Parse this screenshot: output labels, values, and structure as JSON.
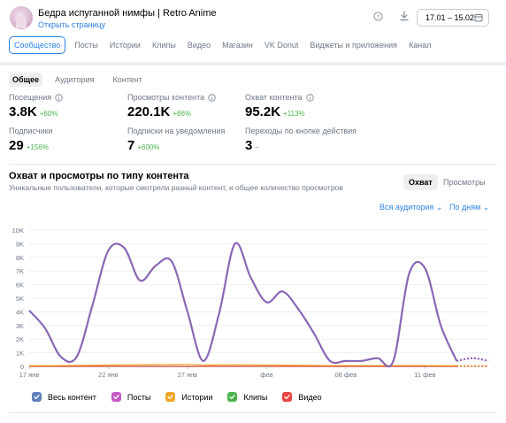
{
  "header": {
    "group_name": "Бедра испуганной нимфы | Retro Anime",
    "open_page": "Открыть страницу",
    "date_range": "17.01 – 15.02"
  },
  "tabs": [
    "Сообщество",
    "Посты",
    "Истории",
    "Клипы",
    "Видео",
    "Магазин",
    "VK Donut",
    "Виджеты и приложения",
    "Канал"
  ],
  "subtabs": [
    "Общее",
    "Аудитория",
    "Контент"
  ],
  "metrics": {
    "visits": {
      "label": "Посещения",
      "value": "3.8K",
      "delta": "+60%"
    },
    "views": {
      "label": "Просмотры контента",
      "value": "220.1K",
      "delta": "+86%"
    },
    "reach": {
      "label": "Охват контента",
      "value": "95.2K",
      "delta": "+113%"
    },
    "subs": {
      "label": "Подписчики",
      "value": "29",
      "delta": "+156%"
    },
    "notif": {
      "label": "Подписки на уведомления",
      "value": "7",
      "delta": "+600%"
    },
    "action": {
      "label": "Переходы по кнопке действия",
      "value": "3",
      "delta": "–"
    }
  },
  "section": {
    "title": "Охват и просмотры по типу контента",
    "subtitle": "Уникальные пользователи, которые смотрели разный контент, и общее количество просмотров",
    "seg_reach": "Охват",
    "seg_views": "Просмотры",
    "audience_dd": "Вся аудитория",
    "period_dd": "По дням"
  },
  "colors": {
    "accent": "#2d81e0",
    "all_content": "#5f7fb8",
    "posts": "#c35bc3",
    "stories": "#f0a528",
    "clips": "#4bb34b",
    "video": "#e64646",
    "line": "#8a68b5"
  },
  "chart_data": {
    "type": "line",
    "x": [
      "17 янв",
      "18 янв",
      "19 янв",
      "20 янв",
      "21 янв",
      "22 янв",
      "23 янв",
      "24 янв",
      "25 янв",
      "26 янв",
      "27 янв",
      "28 янв",
      "29 янв",
      "30 янв",
      "31 янв",
      "1 фев",
      "2 фев",
      "3 фев",
      "4 фев",
      "5 фев",
      "6 фев",
      "7 фев",
      "8 фев",
      "9 фев",
      "10 фев",
      "11 фев",
      "12 фев",
      "13 фев",
      "14 фев",
      "15 фев"
    ],
    "x_ticks": [
      "17 янв",
      "22 янв",
      "27 янв",
      "фев",
      "06 фев",
      "11 фев"
    ],
    "y_ticks": [
      "0",
      "1K",
      "2K",
      "3K",
      "4K",
      "5K",
      "6K",
      "7K",
      "8K",
      "9K",
      "10K"
    ],
    "ylim": [
      0,
      10000
    ],
    "series": [
      {
        "name": "Весь контент",
        "values": [
          4100,
          2800,
          700,
          700,
          4500,
          8500,
          8700,
          6300,
          7400,
          7700,
          4000,
          400,
          3900,
          9000,
          6500,
          4700,
          5500,
          4200,
          2400,
          400,
          400,
          400,
          600,
          400,
          6800,
          7200,
          3000,
          400,
          600,
          400
        ]
      },
      {
        "name": "Посты",
        "values": [
          4100,
          2800,
          700,
          700,
          4500,
          8500,
          8700,
          6300,
          7400,
          7700,
          4000,
          400,
          3900,
          9000,
          6500,
          4700,
          5500,
          4200,
          2400,
          400,
          400,
          400,
          600,
          400,
          6800,
          7200,
          3000,
          400,
          600,
          400
        ]
      },
      {
        "name": "Истории",
        "values": [
          50,
          50,
          60,
          70,
          80,
          100,
          110,
          120,
          130,
          140,
          150,
          100,
          110,
          120,
          110,
          100,
          90,
          80,
          70,
          60,
          60,
          60,
          60,
          60,
          60,
          60,
          50,
          50,
          50,
          50
        ]
      },
      {
        "name": "Клипы",
        "values": [
          0,
          0,
          0,
          0,
          0,
          0,
          0,
          0,
          0,
          0,
          0,
          0,
          0,
          0,
          0,
          0,
          0,
          0,
          0,
          0,
          0,
          0,
          0,
          0,
          0,
          0,
          0,
          0,
          0,
          0
        ]
      },
      {
        "name": "Видео",
        "values": [
          0,
          0,
          0,
          0,
          0,
          0,
          0,
          0,
          0,
          0,
          0,
          0,
          0,
          0,
          0,
          0,
          0,
          0,
          0,
          0,
          0,
          0,
          0,
          0,
          0,
          0,
          0,
          0,
          0,
          0
        ]
      }
    ]
  }
}
